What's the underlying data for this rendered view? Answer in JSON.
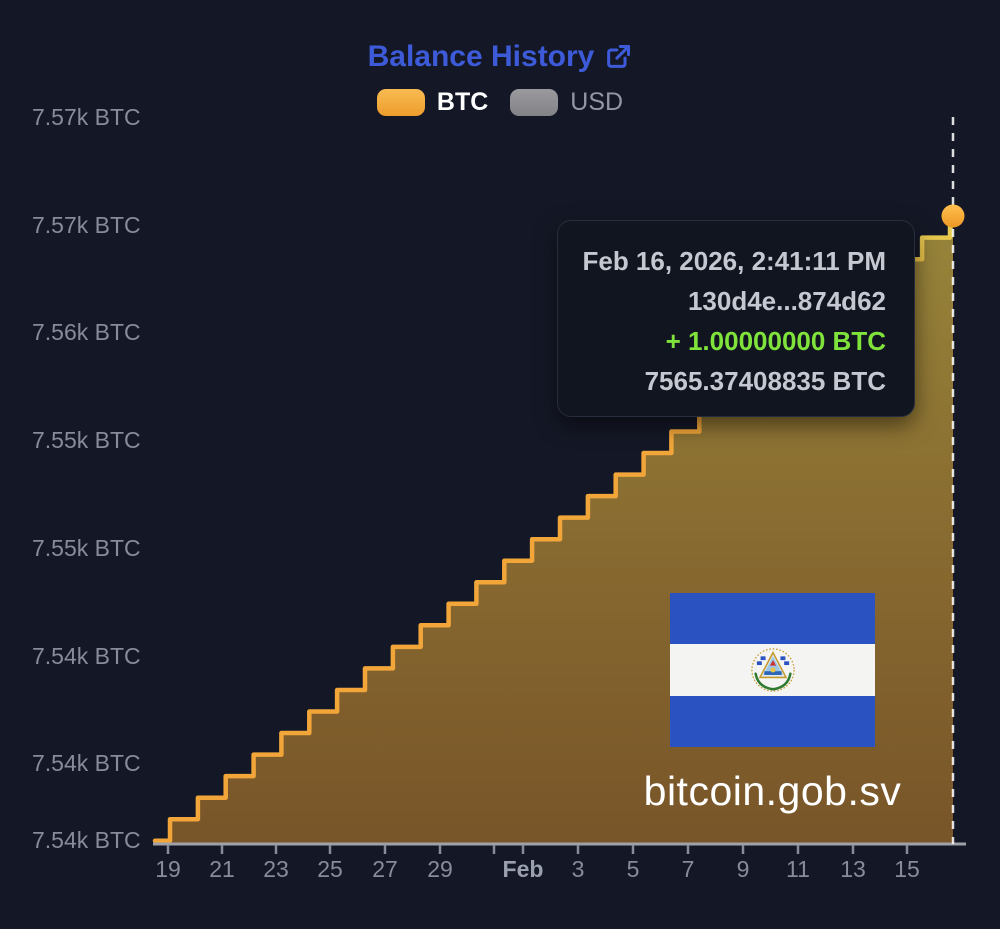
{
  "header": {
    "title": "Balance History",
    "legend": {
      "btc_label": "BTC",
      "usd_label": "USD",
      "btc_swatch_color": "#f2a93c",
      "usd_swatch_color": "#8e8e92",
      "btc_active": true,
      "usd_active": false
    },
    "title_color": "#3d5bd9"
  },
  "tooltip": {
    "timestamp": "Feb 16, 2026, 2:41:11 PM",
    "tx_hash": "130d4e...874d62",
    "amount_change": "+ 1.00000000 BTC",
    "balance": "7565.37408835 BTC",
    "amount_color": "#7fe33c"
  },
  "watermark": {
    "site": "bitcoin.gob.sv"
  },
  "chart_data": {
    "type": "area",
    "step": true,
    "title": "Balance History",
    "series_name": "BTC",
    "unit": "BTC",
    "start_balance": 7536.37408835,
    "daily_increment_btc": 1.0,
    "dates": [
      "Jan 19",
      "Jan 20",
      "Jan 21",
      "Jan 22",
      "Jan 23",
      "Jan 24",
      "Jan 25",
      "Jan 26",
      "Jan 27",
      "Jan 28",
      "Jan 29",
      "Jan 30",
      "Jan 31",
      "Feb 1",
      "Feb 2",
      "Feb 3",
      "Feb 4",
      "Feb 5",
      "Feb 6",
      "Feb 7",
      "Feb 8",
      "Feb 9",
      "Feb 10",
      "Feb 11",
      "Feb 12",
      "Feb 13",
      "Feb 14",
      "Feb 15",
      "Feb 16"
    ],
    "balances": [
      7537.37,
      7538.37,
      7539.37,
      7540.37,
      7541.37,
      7542.37,
      7543.37,
      7544.37,
      7545.37,
      7546.37,
      7547.37,
      7548.37,
      7549.37,
      7550.37,
      7551.37,
      7552.37,
      7553.37,
      7554.37,
      7555.37,
      7556.37,
      7557.37,
      7558.37,
      7559.37,
      7560.37,
      7561.37,
      7562.37,
      7563.37,
      7564.37,
      7565.37408835
    ],
    "y_axis_labels": [
      "7.57k BTC",
      "7.57k BTC",
      "7.56k BTC",
      "7.55k BTC",
      "7.55k BTC",
      "7.54k BTC",
      "7.54k BTC",
      "7.54k BTC"
    ],
    "x_axis_labels": [
      "19",
      "21",
      "23",
      "25",
      "27",
      "29",
      "Feb",
      "3",
      "5",
      "7",
      "9",
      "11",
      "13",
      "15"
    ],
    "ylim": [
      7536,
      7571
    ],
    "grid": false,
    "legend_position": "top",
    "crosshair": {
      "date": "Feb 16",
      "value_btc": 7565.37408835
    },
    "colors": {
      "line": "#f2a63a",
      "line_top": "#e3cf52",
      "fill_top": "#e8c847",
      "fill_bottom": "#ee9d2c",
      "dot": "#f6a93c",
      "axis": "#9fa1a8",
      "crosshair": "#ffffff",
      "background": "#141826"
    }
  }
}
